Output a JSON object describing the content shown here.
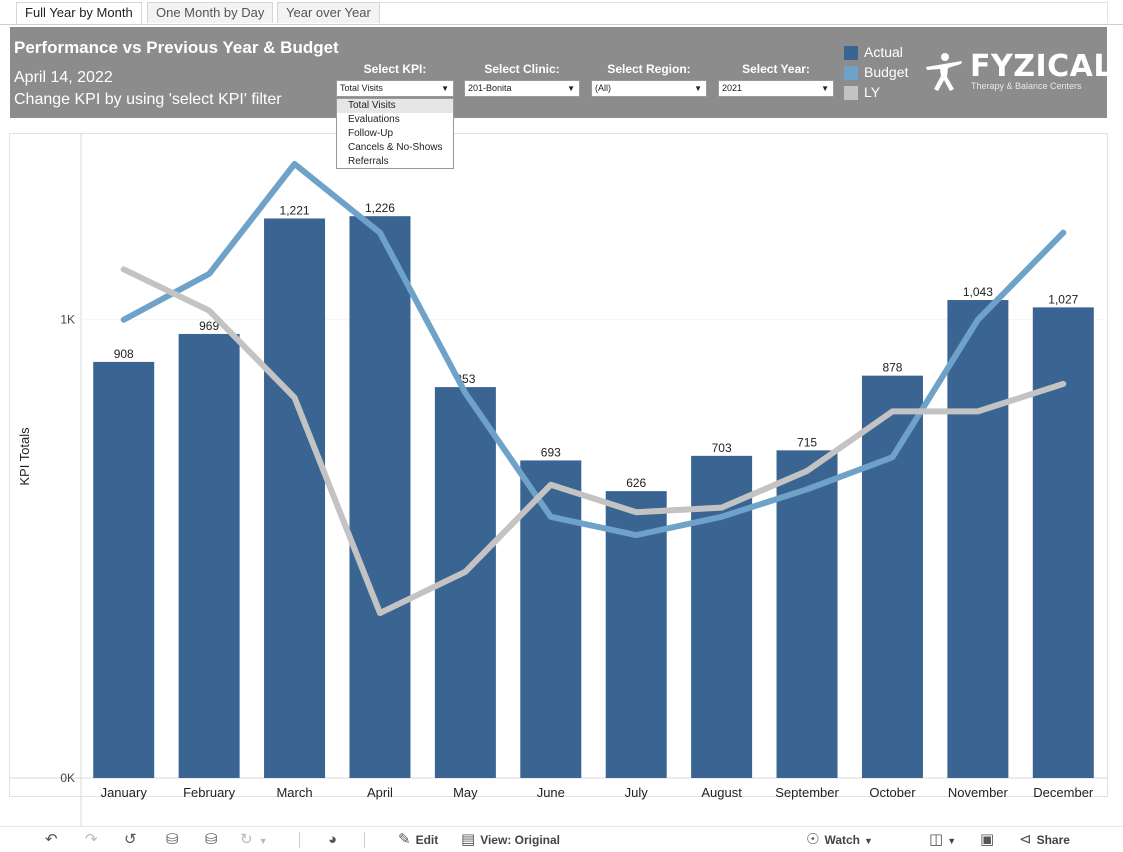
{
  "tabs": [
    {
      "label": "Full Year by Month",
      "active": true
    },
    {
      "label": "One Month by Day",
      "active": false
    },
    {
      "label": "Year over Year",
      "active": false
    }
  ],
  "header": {
    "title": "Performance vs Previous Year & Budget",
    "date": "April 14, 2022",
    "hint": "Change KPI by using 'select KPI' filter"
  },
  "filters": {
    "kpi": {
      "label": "Select KPI:",
      "value": "Total Visits"
    },
    "clinic": {
      "label": "Select Clinic:",
      "value": "201-Bonita"
    },
    "region": {
      "label": "Select Region:",
      "value": "(All)"
    },
    "year": {
      "label": "Select Year:",
      "value": "2021"
    }
  },
  "kpi_options": [
    "Total Visits",
    "Evaluations",
    "Follow-Up",
    "Cancels & No-Shows",
    "Referrals"
  ],
  "legend": [
    {
      "label": "Actual",
      "color": "#3a6592"
    },
    {
      "label": "Budget",
      "color": "#6fa2c9"
    },
    {
      "label": "LY",
      "color": "#c3c3c3"
    }
  ],
  "logo": {
    "name": "FYZICAL",
    "tagline": "Therapy & Balance Centers"
  },
  "chart_data": {
    "type": "bar",
    "ylabel": "KPI Totals",
    "y_ticks": [
      "0K",
      "1K"
    ],
    "ylim": [
      0,
      1340
    ],
    "grid": false,
    "categories": [
      "January",
      "February",
      "March",
      "April",
      "May",
      "June",
      "July",
      "August",
      "September",
      "October",
      "November",
      "December"
    ],
    "series": [
      {
        "name": "Actual",
        "type": "bar",
        "color": "#3a6592",
        "values": [
          908,
          969,
          1221,
          1226,
          853,
          693,
          626,
          703,
          715,
          878,
          1043,
          1027
        ],
        "labels": [
          "908",
          "969",
          "1,221",
          "1,226",
          "853",
          "693",
          "626",
          "703",
          "715",
          "878",
          "1,043",
          "1,027"
        ]
      },
      {
        "name": "Budget",
        "type": "line",
        "color": "#6fa2c9",
        "values": [
          1000,
          1100,
          1340,
          1190,
          840,
          570,
          530,
          570,
          630,
          700,
          1000,
          1190
        ]
      },
      {
        "name": "LY",
        "type": "line",
        "color": "#c3c3c3",
        "values": [
          1110,
          1020,
          830,
          360,
          450,
          640,
          580,
          590,
          670,
          800,
          800,
          860
        ]
      }
    ]
  },
  "toolbar": {
    "undo_icon": "undo-icon",
    "redo_icon": "redo-icon",
    "revert_icon": "revert-icon",
    "edit_label": "Edit",
    "view_label": "View: Original",
    "watch_label": "Watch",
    "share_label": "Share"
  }
}
